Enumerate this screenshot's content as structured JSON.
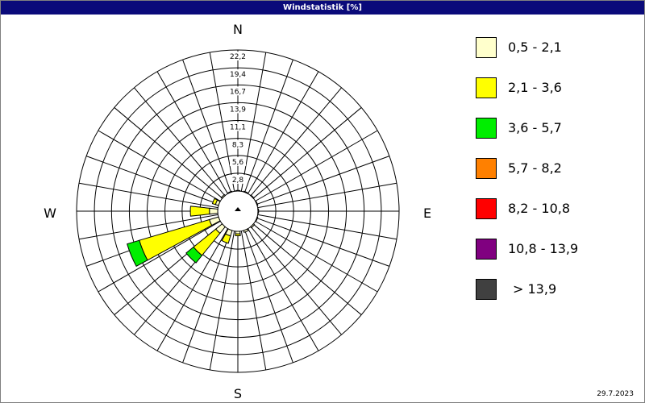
{
  "title": "Windstatistik [%]",
  "date": "29.7.2023",
  "chart_data": {
    "type": "polar-bar",
    "directions": [
      "N",
      "NNE",
      "NE",
      "ENE",
      "E",
      "ESE",
      "SE",
      "SSE",
      "S",
      "SSW",
      "SW",
      "WSW",
      "W",
      "WNW",
      "NW",
      "NNW"
    ],
    "compass_labels": {
      "n": "N",
      "e": "E",
      "s": "S",
      "w": "W"
    },
    "rlim": [
      0,
      22.2
    ],
    "ticks": [
      2.8,
      5.6,
      8.3,
      11.1,
      13.9,
      16.7,
      19.4,
      22.2
    ],
    "tick_labels": [
      "2,8",
      "5,6",
      "8,3",
      "11,1",
      "13,9",
      "16,7",
      "19,4",
      "22,2"
    ],
    "legend": [
      {
        "label": "0,5 - 2,1",
        "color": "#ffffcc"
      },
      {
        "label": "2,1 - 3,6",
        "color": "#ffff00"
      },
      {
        "label": "3,6 - 5,7",
        "color": "#00ee00"
      },
      {
        "label": "5,7 - 8,2",
        "color": "#ff8000"
      },
      {
        "label": "8,2 - 10,8",
        "color": "#ff0000"
      },
      {
        "label": "10,8 - 13,9",
        "color": "#800080"
      },
      {
        "label": "> 13,9",
        "color": "#404040"
      }
    ],
    "series": [
      {
        "name": "0,5 - 2,1",
        "values": [
          0.1,
          0.1,
          0.1,
          0.1,
          0.1,
          0.1,
          0.2,
          0.3,
          0.4,
          0.9,
          1.3,
          1.5,
          1.3,
          0.5,
          0.2,
          0.1
        ]
      },
      {
        "name": "2,1 - 3,6",
        "values": [
          0,
          0,
          0,
          0,
          0,
          0,
          0,
          0,
          0.3,
          1.2,
          4.5,
          11.5,
          3.0,
          0.5,
          0,
          0
        ]
      },
      {
        "name": "3,6 - 5,7",
        "values": [
          0,
          0,
          0,
          0,
          0,
          0,
          0,
          0,
          0,
          0,
          1.5,
          2.0,
          0,
          0,
          0,
          0
        ]
      },
      {
        "name": "5,7 - 8,2",
        "values": [
          0,
          0,
          0,
          0,
          0,
          0,
          0,
          0,
          0,
          0,
          0,
          0,
          0,
          0,
          0,
          0
        ]
      },
      {
        "name": "8,2 - 10,8",
        "values": [
          0,
          0,
          0,
          0,
          0,
          0,
          0,
          0,
          0,
          0,
          0,
          0,
          0,
          0,
          0,
          0
        ]
      },
      {
        "name": "10,8 - 13,9",
        "values": [
          0,
          0,
          0,
          0,
          0,
          0,
          0,
          0,
          0,
          0,
          0,
          0,
          0,
          0,
          0,
          0
        ]
      },
      {
        "name": "> 13,9",
        "values": [
          0,
          0,
          0,
          0,
          0,
          0,
          0,
          0,
          0,
          0,
          0,
          0,
          0,
          0,
          0,
          0
        ]
      }
    ],
    "grid": true
  }
}
